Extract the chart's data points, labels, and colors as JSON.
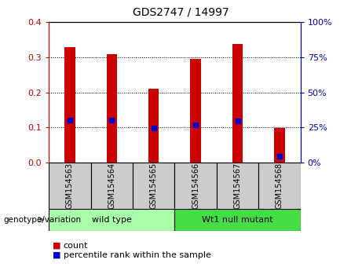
{
  "title": "GDS2747 / 14997",
  "samples": [
    "GSM154563",
    "GSM154564",
    "GSM154565",
    "GSM154566",
    "GSM154567",
    "GSM154568"
  ],
  "count_values": [
    0.33,
    0.31,
    0.21,
    0.295,
    0.338,
    0.098
  ],
  "percentile_values": [
    0.12,
    0.12,
    0.098,
    0.108,
    0.118,
    0.018
  ],
  "ylim_left": [
    0,
    0.4
  ],
  "ylim_right": [
    0,
    100
  ],
  "yticks_left": [
    0,
    0.1,
    0.2,
    0.3,
    0.4
  ],
  "yticks_right": [
    0,
    25,
    50,
    75,
    100
  ],
  "left_color": "#CC0000",
  "right_color": "#0000CC",
  "groups": [
    {
      "label": "wild type",
      "indices": [
        0,
        1,
        2
      ],
      "color": "#AAFFAA"
    },
    {
      "label": "Wt1 null mutant",
      "indices": [
        3,
        4,
        5
      ],
      "color": "#44DD44"
    }
  ],
  "genotype_label": "genotype/variation",
  "legend_count_label": "count",
  "legend_pct_label": "percentile rank within the sample",
  "bg_color": "#FFFFFF",
  "sample_box_color": "#CCCCCC",
  "bar_width": 0.25
}
